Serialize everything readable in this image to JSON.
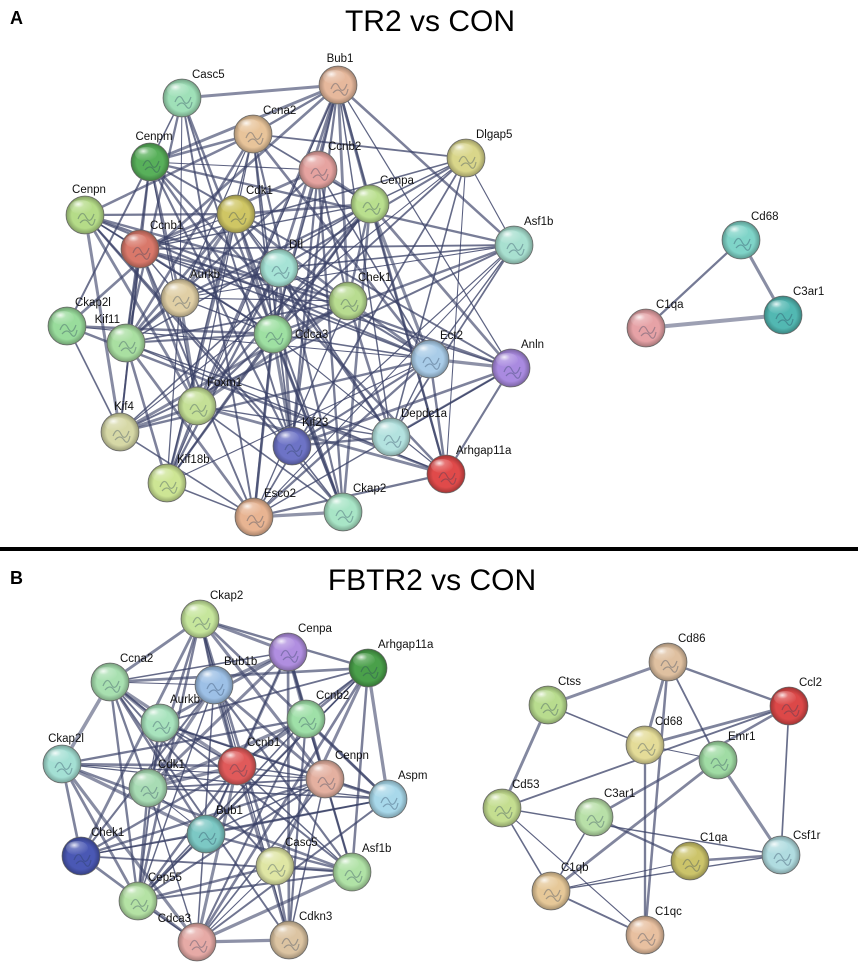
{
  "panels": [
    {
      "key": "A",
      "letter": "A",
      "title": "TR2 vs CON",
      "networks": [
        {
          "nodes": [
            {
              "id": "Bub1",
              "color": "#e6b89c"
            },
            {
              "id": "Casc5",
              "color": "#9fe0b8"
            },
            {
              "id": "Ccna2",
              "color": "#e8c49a"
            },
            {
              "id": "Cenpm",
              "color": "#58b05a"
            },
            {
              "id": "Ccnb2",
              "color": "#e6a3a0"
            },
            {
              "id": "Dlgap5",
              "color": "#d9d68a"
            },
            {
              "id": "Cenpn",
              "color": "#b5dc88"
            },
            {
              "id": "Cdk1",
              "color": "#cfc664"
            },
            {
              "id": "Cenpa",
              "color": "#b9df8e"
            },
            {
              "id": "Ccnb1",
              "color": "#d9786a"
            },
            {
              "id": "Asf1b",
              "color": "#a8e0d0"
            },
            {
              "id": "Dtl",
              "color": "#a6e3d6"
            },
            {
              "id": "Aurkb",
              "color": "#e0cfa5"
            },
            {
              "id": "Chek1",
              "color": "#b8dc90"
            },
            {
              "id": "Ckap2l",
              "color": "#99dc9c"
            },
            {
              "id": "Kif11",
              "color": "#a9dfa1"
            },
            {
              "id": "Cdca3",
              "color": "#9ee0a2"
            },
            {
              "id": "Ect2",
              "color": "#a9cce8"
            },
            {
              "id": "Anln",
              "color": "#a98ae0"
            },
            {
              "id": "Foxm1",
              "color": "#c4e096"
            },
            {
              "id": "Kif4",
              "color": "#d6d8a6"
            },
            {
              "id": "Kif23",
              "color": "#6d73c6"
            },
            {
              "id": "Depdc1a",
              "color": "#b3e2df"
            },
            {
              "id": "Kif18b",
              "color": "#cde594"
            },
            {
              "id": "Arhgap11a",
              "color": "#e04a4a"
            },
            {
              "id": "Esco2",
              "color": "#e8b492"
            },
            {
              "id": "Ckap2",
              "color": "#a8e5c6"
            }
          ]
        },
        {
          "nodes": [
            {
              "id": "Cd68",
              "color": "#7fd4c8"
            },
            {
              "id": "C1qa",
              "color": "#e6a2a6"
            },
            {
              "id": "C3ar1",
              "color": "#52b8b2"
            }
          ],
          "edges": [
            [
              "Cd68",
              "C1qa"
            ],
            [
              "Cd68",
              "C3ar1"
            ],
            [
              "C1qa",
              "C3ar1"
            ]
          ]
        }
      ]
    },
    {
      "key": "B",
      "letter": "B",
      "title": "FBTR2 vs CON",
      "networks": [
        {
          "nodes": [
            {
              "id": "Ckap2",
              "color": "#c6e69c"
            },
            {
              "id": "Cenpa",
              "color": "#b08ee0"
            },
            {
              "id": "Arhgap11a",
              "color": "#4aa04a"
            },
            {
              "id": "Ccna2",
              "color": "#a8e0b0"
            },
            {
              "id": "Bub1b",
              "color": "#9dc0e6"
            },
            {
              "id": "Aurkb",
              "color": "#a8e3bd"
            },
            {
              "id": "Ccnb2",
              "color": "#9fe0a8"
            },
            {
              "id": "Ckap2l",
              "color": "#a4e0d4"
            },
            {
              "id": "Ccnb1",
              "color": "#e05a5a"
            },
            {
              "id": "Cenpn",
              "color": "#e4b0a0"
            },
            {
              "id": "Cdk1",
              "color": "#a8dcb4"
            },
            {
              "id": "Aspm",
              "color": "#a8d8ea"
            },
            {
              "id": "Bub1",
              "color": "#7cc8c4"
            },
            {
              "id": "Chek1",
              "color": "#4a58b4"
            },
            {
              "id": "Casc5",
              "color": "#dfe6a4"
            },
            {
              "id": "Asf1b",
              "color": "#b0e2a6"
            },
            {
              "id": "Cep55",
              "color": "#b4e2a4"
            },
            {
              "id": "Cdca3",
              "color": "#e6aaa6"
            },
            {
              "id": "Cdkn3",
              "color": "#dcc4a2"
            }
          ]
        },
        {
          "nodes": [
            {
              "id": "Cd86",
              "color": "#dfc0a0"
            },
            {
              "id": "Ctss",
              "color": "#b8dc8e"
            },
            {
              "id": "Ccl2",
              "color": "#dc4848"
            },
            {
              "id": "Cd68",
              "color": "#e4dc98"
            },
            {
              "id": "Emr1",
              "color": "#a0dca4"
            },
            {
              "id": "Cd53",
              "color": "#c4de90"
            },
            {
              "id": "C3ar1",
              "color": "#b8e0a8"
            },
            {
              "id": "C1qa",
              "color": "#ccc46a"
            },
            {
              "id": "Csf1r",
              "color": "#b0dce0"
            },
            {
              "id": "C1qb",
              "color": "#e6c898"
            },
            {
              "id": "C1qc",
              "color": "#e8c0a0"
            }
          ]
        }
      ]
    }
  ]
}
